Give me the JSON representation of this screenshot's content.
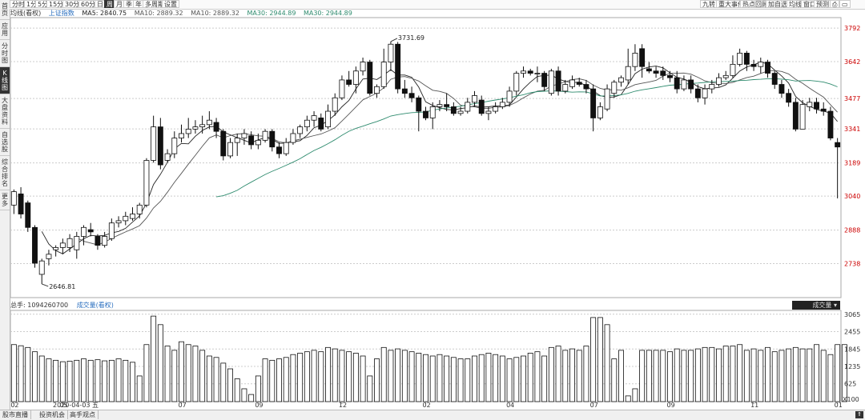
{
  "sidebar": {
    "tabs": [
      {
        "label": "首页",
        "active": false
      },
      {
        "label": "应用",
        "active": false
      },
      {
        "label": "分时图",
        "active": false
      },
      {
        "label": "K线图",
        "active": true
      },
      {
        "label": "大盘资料",
        "active": false
      },
      {
        "label": "自选股",
        "active": false
      },
      {
        "label": "综合排名",
        "active": false
      },
      {
        "label": "更多",
        "active": false
      }
    ]
  },
  "toolbar": {
    "periods": [
      {
        "label": "分时",
        "active": false
      },
      {
        "label": "1分",
        "active": false
      },
      {
        "label": "5分",
        "active": false
      },
      {
        "label": "15分",
        "active": false
      },
      {
        "label": "30分",
        "active": false
      },
      {
        "label": "60分",
        "active": false
      },
      {
        "label": "日",
        "active": false
      },
      {
        "label": "周",
        "active": true
      },
      {
        "label": "月",
        "active": false
      },
      {
        "label": "季",
        "active": false
      },
      {
        "label": "年",
        "active": false
      },
      {
        "label": "多周期",
        "active": false
      },
      {
        "label": "设置",
        "active": false
      }
    ],
    "right_buttons": [
      "九转",
      "重大事件",
      "热点回顾",
      "加自选",
      "均线",
      "窗口",
      "预测"
    ]
  },
  "legend": {
    "ma_setting": "均线(看权)",
    "index_name": "上证指数",
    "ma5": "MA5: 2840.75",
    "ma10": "MA10: 2889.32",
    "ma10b": "MA10: 2889.32",
    "ma30": "MA30: 2944.89",
    "ma30b": "MA30: 2944.89"
  },
  "volume_panel": {
    "total": "总手: 1094260700",
    "indicator": "成交量(看权)",
    "dropdown_label": "成交量",
    "unit": "X100"
  },
  "annotations": {
    "high": "3731.69",
    "low": "2646.81",
    "date_marker": "2020-04-03 五"
  },
  "colors": {
    "up": "#222222",
    "down": "#111111",
    "ma5": "#222222",
    "ma10": "#555555",
    "ma30": "#2e8b6e",
    "axis_label": "#cc0000",
    "grid": "#cccccc"
  },
  "chart_data": {
    "type": "candlestick",
    "period": "weekly",
    "y_ticks": [
      2738,
      2888,
      3040,
      3189,
      3341,
      3477,
      3642,
      3792
    ],
    "ylim": [
      2586,
      3839
    ],
    "volume_ticks": [
      "625",
      "1235",
      "1845",
      "2455",
      "3065"
    ],
    "volume_ylim": [
      0,
      3200
    ],
    "x_labels": [
      "02",
      "05",
      "07",
      "09",
      "12",
      "02",
      "04",
      "07",
      "09",
      "11",
      "01"
    ],
    "candles": [
      {
        "o": 3000,
        "c": 3060,
        "h": 3070,
        "l": 2960
      },
      {
        "o": 3050,
        "c": 2960,
        "h": 3080,
        "l": 2940
      },
      {
        "o": 3010,
        "c": 2900,
        "h": 3020,
        "l": 2880
      },
      {
        "o": 2900,
        "c": 2740,
        "h": 2910,
        "l": 2720
      },
      {
        "o": 2690,
        "c": 2750,
        "h": 2760,
        "l": 2647
      },
      {
        "o": 2760,
        "c": 2780,
        "h": 2800,
        "l": 2730
      },
      {
        "o": 2800,
        "c": 2810,
        "h": 2820,
        "l": 2770
      },
      {
        "o": 2810,
        "c": 2830,
        "h": 2850,
        "l": 2780
      },
      {
        "o": 2810,
        "c": 2850,
        "h": 2870,
        "l": 2790
      },
      {
        "o": 2800,
        "c": 2860,
        "h": 2880,
        "l": 2760
      },
      {
        "o": 2860,
        "c": 2900,
        "h": 2910,
        "l": 2820
      },
      {
        "o": 2890,
        "c": 2880,
        "h": 2920,
        "l": 2860
      },
      {
        "o": 2860,
        "c": 2820,
        "h": 2870,
        "l": 2800
      },
      {
        "o": 2820,
        "c": 2860,
        "h": 2880,
        "l": 2810
      },
      {
        "o": 2850,
        "c": 2920,
        "h": 2940,
        "l": 2840
      },
      {
        "o": 2920,
        "c": 2930,
        "h": 2950,
        "l": 2900
      },
      {
        "o": 2930,
        "c": 2950,
        "h": 2970,
        "l": 2910
      },
      {
        "o": 2940,
        "c": 2960,
        "h": 2990,
        "l": 2930
      },
      {
        "o": 2960,
        "c": 3000,
        "h": 3010,
        "l": 2940
      },
      {
        "o": 3000,
        "c": 3200,
        "h": 3210,
        "l": 2990
      },
      {
        "o": 3200,
        "c": 3350,
        "h": 3400,
        "l": 3190
      },
      {
        "o": 3350,
        "c": 3180,
        "h": 3390,
        "l": 3160
      },
      {
        "o": 3200,
        "c": 3230,
        "h": 3250,
        "l": 3190
      },
      {
        "o": 3230,
        "c": 3300,
        "h": 3330,
        "l": 3210
      },
      {
        "o": 3300,
        "c": 3320,
        "h": 3360,
        "l": 3280
      },
      {
        "o": 3320,
        "c": 3340,
        "h": 3390,
        "l": 3300
      },
      {
        "o": 3340,
        "c": 3350,
        "h": 3380,
        "l": 3320
      },
      {
        "o": 3350,
        "c": 3360,
        "h": 3400,
        "l": 3320
      },
      {
        "o": 3360,
        "c": 3380,
        "h": 3420,
        "l": 3340
      },
      {
        "o": 3370,
        "c": 3330,
        "h": 3390,
        "l": 3300
      },
      {
        "o": 3330,
        "c": 3220,
        "h": 3340,
        "l": 3200
      },
      {
        "o": 3220,
        "c": 3280,
        "h": 3300,
        "l": 3210
      },
      {
        "o": 3280,
        "c": 3300,
        "h": 3320,
        "l": 3220
      },
      {
        "o": 3300,
        "c": 3320,
        "h": 3340,
        "l": 3270
      },
      {
        "o": 3310,
        "c": 3270,
        "h": 3330,
        "l": 3250
      },
      {
        "o": 3270,
        "c": 3290,
        "h": 3320,
        "l": 3250
      },
      {
        "o": 3290,
        "c": 3330,
        "h": 3340,
        "l": 3280
      },
      {
        "o": 3330,
        "c": 3260,
        "h": 3340,
        "l": 3240
      },
      {
        "o": 3260,
        "c": 3230,
        "h": 3280,
        "l": 3210
      },
      {
        "o": 3230,
        "c": 3280,
        "h": 3300,
        "l": 3220
      },
      {
        "o": 3280,
        "c": 3320,
        "h": 3340,
        "l": 3270
      },
      {
        "o": 3320,
        "c": 3350,
        "h": 3360,
        "l": 3300
      },
      {
        "o": 3350,
        "c": 3380,
        "h": 3400,
        "l": 3330
      },
      {
        "o": 3380,
        "c": 3400,
        "h": 3420,
        "l": 3350
      },
      {
        "o": 3390,
        "c": 3340,
        "h": 3410,
        "l": 3330
      },
      {
        "o": 3350,
        "c": 3420,
        "h": 3450,
        "l": 3340
      },
      {
        "o": 3420,
        "c": 3480,
        "h": 3500,
        "l": 3400
      },
      {
        "o": 3480,
        "c": 3560,
        "h": 3580,
        "l": 3470
      },
      {
        "o": 3560,
        "c": 3540,
        "h": 3600,
        "l": 3530
      },
      {
        "o": 3540,
        "c": 3600,
        "h": 3620,
        "l": 3500
      },
      {
        "o": 3600,
        "c": 3640,
        "h": 3660,
        "l": 3580
      },
      {
        "o": 3640,
        "c": 3500,
        "h": 3650,
        "l": 3490
      },
      {
        "o": 3500,
        "c": 3530,
        "h": 3540,
        "l": 3480
      },
      {
        "o": 3530,
        "c": 3640,
        "h": 3700,
        "l": 3520
      },
      {
        "o": 3640,
        "c": 3720,
        "h": 3732,
        "l": 3600
      },
      {
        "o": 3720,
        "c": 3520,
        "h": 3730,
        "l": 3500
      },
      {
        "o": 3520,
        "c": 3500,
        "h": 3560,
        "l": 3480
      },
      {
        "o": 3500,
        "c": 3480,
        "h": 3530,
        "l": 3460
      },
      {
        "o": 3480,
        "c": 3420,
        "h": 3490,
        "l": 3330
      },
      {
        "o": 3420,
        "c": 3390,
        "h": 3440,
        "l": 3380
      },
      {
        "o": 3390,
        "c": 3440,
        "h": 3460,
        "l": 3340
      },
      {
        "o": 3440,
        "c": 3450,
        "h": 3470,
        "l": 3420
      },
      {
        "o": 3450,
        "c": 3440,
        "h": 3500,
        "l": 3420
      },
      {
        "o": 3440,
        "c": 3410,
        "h": 3460,
        "l": 3400
      },
      {
        "o": 3410,
        "c": 3420,
        "h": 3440,
        "l": 3400
      },
      {
        "o": 3420,
        "c": 3460,
        "h": 3480,
        "l": 3410
      },
      {
        "o": 3460,
        "c": 3490,
        "h": 3510,
        "l": 3440
      },
      {
        "o": 3470,
        "c": 3410,
        "h": 3490,
        "l": 3400
      },
      {
        "o": 3410,
        "c": 3420,
        "h": 3440,
        "l": 3380
      },
      {
        "o": 3420,
        "c": 3440,
        "h": 3460,
        "l": 3410
      },
      {
        "o": 3440,
        "c": 3460,
        "h": 3480,
        "l": 3430
      },
      {
        "o": 3460,
        "c": 3510,
        "h": 3530,
        "l": 3440
      },
      {
        "o": 3510,
        "c": 3590,
        "h": 3600,
        "l": 3490
      },
      {
        "o": 3590,
        "c": 3600,
        "h": 3620,
        "l": 3570
      },
      {
        "o": 3600,
        "c": 3590,
        "h": 3610,
        "l": 3580
      },
      {
        "o": 3590,
        "c": 3590,
        "h": 3620,
        "l": 3550
      },
      {
        "o": 3590,
        "c": 3530,
        "h": 3600,
        "l": 3510
      },
      {
        "o": 3500,
        "c": 3600,
        "h": 3610,
        "l": 3490
      },
      {
        "o": 3600,
        "c": 3510,
        "h": 3620,
        "l": 3490
      },
      {
        "o": 3510,
        "c": 3540,
        "h": 3560,
        "l": 3500
      },
      {
        "o": 3530,
        "c": 3560,
        "h": 3580,
        "l": 3520
      },
      {
        "o": 3550,
        "c": 3540,
        "h": 3570,
        "l": 3530
      },
      {
        "o": 3540,
        "c": 3520,
        "h": 3560,
        "l": 3500
      },
      {
        "o": 3520,
        "c": 3390,
        "h": 3540,
        "l": 3330
      },
      {
        "o": 3390,
        "c": 3440,
        "h": 3460,
        "l": 3380
      },
      {
        "o": 3430,
        "c": 3520,
        "h": 3540,
        "l": 3420
      },
      {
        "o": 3500,
        "c": 3550,
        "h": 3560,
        "l": 3480
      },
      {
        "o": 3550,
        "c": 3570,
        "h": 3580,
        "l": 3530
      },
      {
        "o": 3560,
        "c": 3620,
        "h": 3700,
        "l": 3540
      },
      {
        "o": 3620,
        "c": 3680,
        "h": 3720,
        "l": 3600
      },
      {
        "o": 3700,
        "c": 3620,
        "h": 3720,
        "l": 3570
      },
      {
        "o": 3610,
        "c": 3600,
        "h": 3640,
        "l": 3590
      },
      {
        "o": 3600,
        "c": 3590,
        "h": 3620,
        "l": 3570
      },
      {
        "o": 3600,
        "c": 3580,
        "h": 3620,
        "l": 3560
      },
      {
        "o": 3580,
        "c": 3570,
        "h": 3600,
        "l": 3550
      },
      {
        "o": 3570,
        "c": 3520,
        "h": 3600,
        "l": 3500
      },
      {
        "o": 3520,
        "c": 3560,
        "h": 3580,
        "l": 3510
      },
      {
        "o": 3560,
        "c": 3520,
        "h": 3580,
        "l": 3500
      },
      {
        "o": 3520,
        "c": 3480,
        "h": 3540,
        "l": 3460
      },
      {
        "o": 3480,
        "c": 3520,
        "h": 3540,
        "l": 3450
      },
      {
        "o": 3520,
        "c": 3540,
        "h": 3560,
        "l": 3500
      },
      {
        "o": 3540,
        "c": 3570,
        "h": 3590,
        "l": 3530
      },
      {
        "o": 3570,
        "c": 3580,
        "h": 3600,
        "l": 3560
      },
      {
        "o": 3580,
        "c": 3630,
        "h": 3670,
        "l": 3570
      },
      {
        "o": 3630,
        "c": 3680,
        "h": 3700,
        "l": 3620
      },
      {
        "o": 3680,
        "c": 3630,
        "h": 3690,
        "l": 3600
      },
      {
        "o": 3630,
        "c": 3620,
        "h": 3650,
        "l": 3600
      },
      {
        "o": 3620,
        "c": 3640,
        "h": 3660,
        "l": 3590
      },
      {
        "o": 3640,
        "c": 3590,
        "h": 3650,
        "l": 3570
      },
      {
        "o": 3590,
        "c": 3540,
        "h": 3600,
        "l": 3520
      },
      {
        "o": 3540,
        "c": 3500,
        "h": 3560,
        "l": 3480
      },
      {
        "o": 3500,
        "c": 3460,
        "h": 3520,
        "l": 3440
      },
      {
        "o": 3460,
        "c": 3340,
        "h": 3480,
        "l": 3330
      },
      {
        "o": 3340,
        "c": 3450,
        "h": 3470,
        "l": 3340
      },
      {
        "o": 3440,
        "c": 3460,
        "h": 3480,
        "l": 3420
      },
      {
        "o": 3460,
        "c": 3430,
        "h": 3480,
        "l": 3410
      },
      {
        "o": 3430,
        "c": 3420,
        "h": 3460,
        "l": 3400
      },
      {
        "o": 3420,
        "c": 3300,
        "h": 3440,
        "l": 3290
      },
      {
        "o": 3280,
        "c": 3260,
        "h": 3300,
        "l": 3030
      }
    ],
    "volumes": [
      2000,
      1960,
      1900,
      1750,
      1600,
      1500,
      1450,
      1400,
      1420,
      1450,
      1500,
      1450,
      1470,
      1430,
      1450,
      1500,
      1450,
      1380,
      900,
      2000,
      3000,
      2700,
      1950,
      1800,
      2100,
      2000,
      1950,
      1800,
      1600,
      1550,
      1350,
      1150,
      800,
      450,
      250,
      900,
      1500,
      1450,
      1500,
      1550,
      1650,
      1700,
      1750,
      1800,
      1750,
      1900,
      1850,
      1800,
      1750,
      1700,
      1600,
      900,
      1500,
      1900,
      1800,
      1850,
      1800,
      1750,
      1700,
      1650,
      1600,
      1650,
      1600,
      1550,
      1500,
      1500,
      1600,
      1650,
      1700,
      1650,
      1600,
      1500,
      1550,
      1600,
      1700,
      1750,
      1600,
      1900,
      1950,
      1800,
      1850,
      1800,
      1950,
      2950,
      2950,
      2700,
      1500,
      1800,
      200,
      450,
      1800,
      1800,
      1800,
      1800,
      1750,
      1850,
      1800,
      1800,
      1850,
      1900,
      1900,
      1850,
      1950,
      1950,
      2000,
      1800,
      1850,
      1800,
      1900,
      1750,
      1800,
      1850,
      1900,
      1850,
      1850,
      2000,
      1800,
      1650,
      2000,
      2000
    ]
  }
}
